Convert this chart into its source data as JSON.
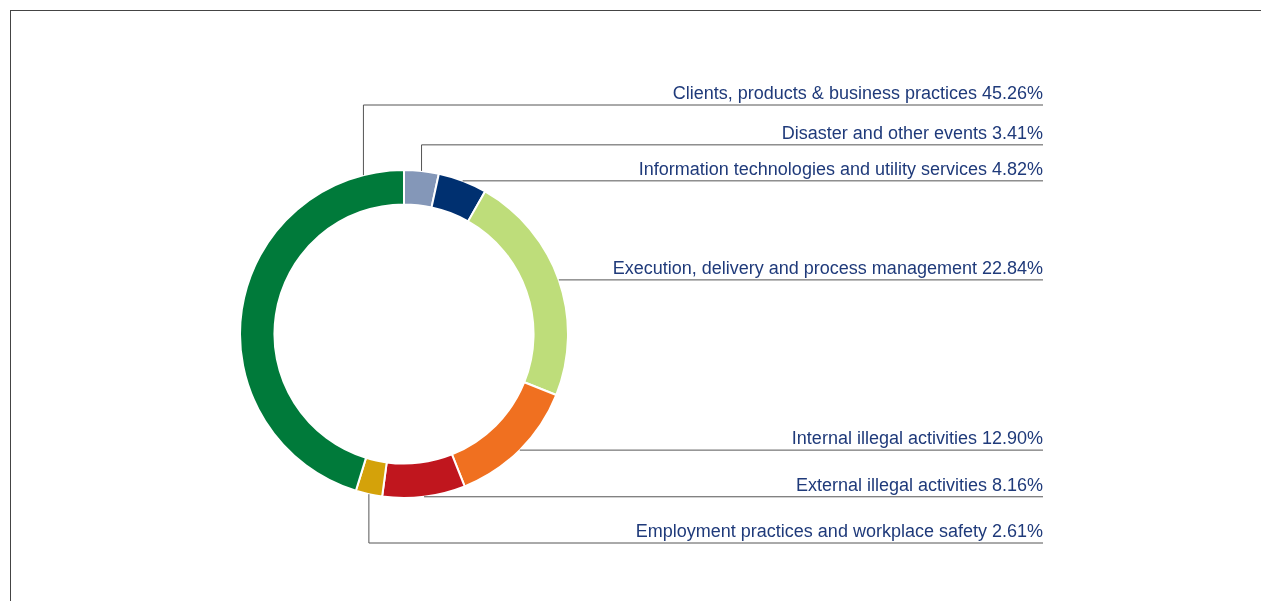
{
  "chart_data": {
    "type": "donut",
    "categories": [
      "Disaster and other events",
      "Information technologies and utility services",
      "Execution, delivery and process management",
      "Internal illegal activities",
      "External illegal activities",
      "Employment practices and workplace safety",
      "Clients, products & business practices"
    ],
    "values": [
      3.41,
      4.82,
      22.84,
      12.9,
      8.16,
      2.61,
      45.26
    ],
    "value_labels": [
      "3.41%",
      "4.82%",
      "22.84%",
      "12.90%",
      "8.16%",
      "2.61%",
      "45.26%"
    ],
    "colors": [
      "#8497b8",
      "#003070",
      "#bedd7a",
      "#f07020",
      "#c0161e",
      "#d4a20a",
      "#007a3a"
    ]
  }
}
